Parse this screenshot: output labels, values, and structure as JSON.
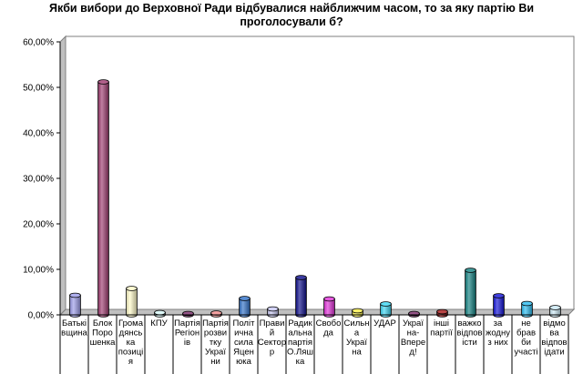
{
  "chart_data": {
    "type": "bar",
    "title_lines": [
      "Якби вибори до Верховної Ради відбувалися найближчим часом, то за яку  партію Ви",
      "проголосували б?"
    ],
    "xlabel": "",
    "ylabel": "",
    "ylim": [
      0,
      60
    ],
    "yticks": [
      0,
      10,
      20,
      30,
      40,
      50,
      60
    ],
    "ytick_labels": [
      "0,00%",
      "10,00%",
      "20,00%",
      "30,00%",
      "40,00%",
      "50,00%",
      "60,00%"
    ],
    "grid": false,
    "legend": "none",
    "categories": [
      {
        "label_lines": [
          "Батькі",
          "вщина"
        ],
        "value": 4.3,
        "color": "#9a9ae8"
      },
      {
        "label_lines": [
          "Блок",
          "Поро",
          "шенка"
        ],
        "value": 51.2,
        "color": "#9e3a6e"
      },
      {
        "label_lines": [
          "Грома",
          "дянсь",
          "ка",
          "позиці",
          "я"
        ],
        "value": 5.8,
        "color": "#fffbc8"
      },
      {
        "label_lines": [
          "КПУ"
        ],
        "value": 0.5,
        "color": "#d7f8f8"
      },
      {
        "label_lines": [
          "Партія",
          "Регіон",
          "ів"
        ],
        "value": 0.3,
        "color": "#7a2a6a"
      },
      {
        "label_lines": [
          "Партія",
          "розви",
          "тку",
          "Украї",
          "ни"
        ],
        "value": 0.4,
        "color": "#f08a8a"
      },
      {
        "label_lines": [
          "Політ",
          "ична",
          "сила",
          "Яцен",
          "юка"
        ],
        "value": 3.6,
        "color": "#2f70c8"
      },
      {
        "label_lines": [
          "Прави",
          "й",
          "Сектор",
          "р"
        ],
        "value": 1.3,
        "color": "#c7c7f2"
      },
      {
        "label_lines": [
          "Радик",
          "альна",
          "партія",
          "О.Ляш",
          "ка"
        ],
        "value": 8.2,
        "color": "#0a0a8a"
      },
      {
        "label_lines": [
          "Свобо",
          "да"
        ],
        "value": 3.5,
        "color": "#e030d8"
      },
      {
        "label_lines": [
          "Сильн",
          "а",
          "Украї",
          "на"
        ],
        "value": 0.9,
        "color": "#f6ee46"
      },
      {
        "label_lines": [
          "УДАР"
        ],
        "value": 2.4,
        "color": "#3ad6f2"
      },
      {
        "label_lines": [
          "Украї",
          "на-",
          "Впере",
          "д!"
        ],
        "value": 0.3,
        "color": "#7a2a6a"
      },
      {
        "label_lines": [
          "інші",
          "партії"
        ],
        "value": 0.7,
        "color": "#a81818"
      },
      {
        "label_lines": [
          "важко",
          "відпов",
          "істи"
        ],
        "value": 9.8,
        "color": "#108080"
      },
      {
        "label_lines": [
          "за",
          "жодну",
          "з них"
        ],
        "value": 4.2,
        "color": "#1010d8"
      },
      {
        "label_lines": [
          "не",
          "брав",
          "би",
          "участі"
        ],
        "value": 2.5,
        "color": "#28bcf0"
      },
      {
        "label_lines": [
          "відмо",
          "ва",
          "відпов",
          "ідати"
        ],
        "value": 1.6,
        "color": "#cceaf6"
      }
    ]
  }
}
